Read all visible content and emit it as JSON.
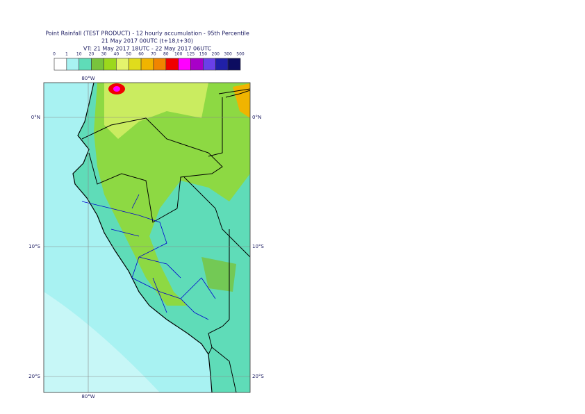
{
  "title": [
    "Point Rainfall (TEST PRODUCT) - 12 hourly accumulation - 95th Percentile",
    "21 May 2017 00UTC (t+18,t+30)",
    "VT: 21 May 2017 18UTC - 22 May 2017 06UTC"
  ],
  "legend": {
    "levels": [
      0,
      1,
      10,
      20,
      30,
      40,
      50,
      60,
      70,
      80,
      100,
      125,
      150,
      200,
      300,
      500
    ],
    "colors": [
      "#ffffff",
      "#a8f2f2",
      "#5fdcb8",
      "#78c43c",
      "#9cd81c",
      "#e4f46c",
      "#e0dc1c",
      "#f0b400",
      "#f08400",
      "#f00000",
      "#ff00ff",
      "#a800c8",
      "#6a40e8",
      "#2020a8",
      "#0c0c60"
    ]
  },
  "map": {
    "lon_top": "80°W",
    "lon_bottom": "80°W",
    "lat_labels": [
      "0°N",
      "10°S",
      "20°S"
    ]
  }
}
